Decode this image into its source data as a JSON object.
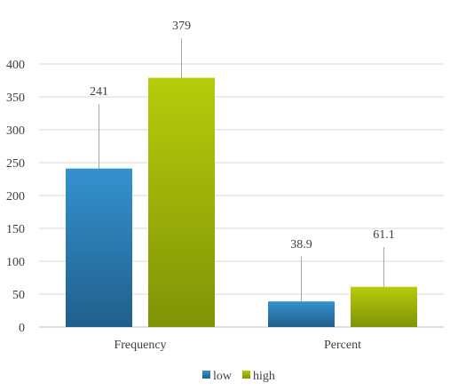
{
  "chart_data": {
    "type": "bar",
    "categories": [
      "Frequency",
      "Percent"
    ],
    "series": [
      {
        "name": "low",
        "values": [
          241,
          38.9
        ]
      },
      {
        "name": "high",
        "values": [
          379,
          61.1
        ]
      }
    ],
    "ylim": [
      0,
      400
    ],
    "yticks": [
      0,
      50,
      100,
      150,
      200,
      250,
      300,
      350,
      400
    ],
    "grid": true,
    "legend_position": "bottom",
    "data_labels": true,
    "colors": {
      "low_top": "#3592cf",
      "low_bottom": "#205f8c",
      "high_top": "#b7cc0a",
      "high_bottom": "#7f9307",
      "gridline": "#d9d9d9",
      "axis": "#bfbfbf",
      "leader": "#a6a6a6"
    }
  }
}
